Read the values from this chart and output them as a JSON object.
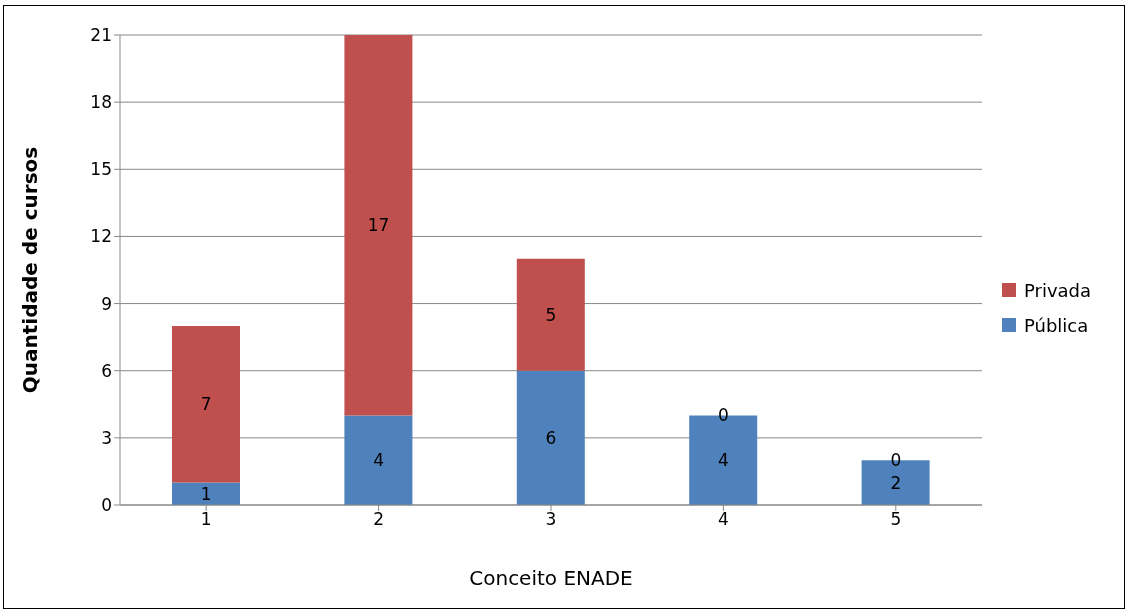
{
  "chart_data": {
    "type": "bar",
    "stacked": true,
    "xlabel": "Conceito ENADE",
    "ylabel": "Quantidade de cursos",
    "categories": [
      "1",
      "2",
      "3",
      "4",
      "5"
    ],
    "series": [
      {
        "name": "Pública",
        "color": "#4f81bd",
        "values": [
          1,
          4,
          6,
          4,
          2
        ]
      },
      {
        "name": "Privada",
        "color": "#c0504d",
        "values": [
          7,
          17,
          5,
          0,
          0
        ]
      }
    ],
    "ylim": [
      0,
      21
    ],
    "yticks": [
      0,
      3,
      6,
      9,
      12,
      15,
      18,
      21
    ],
    "grid": "y",
    "legend": "right",
    "data_labels": true
  }
}
